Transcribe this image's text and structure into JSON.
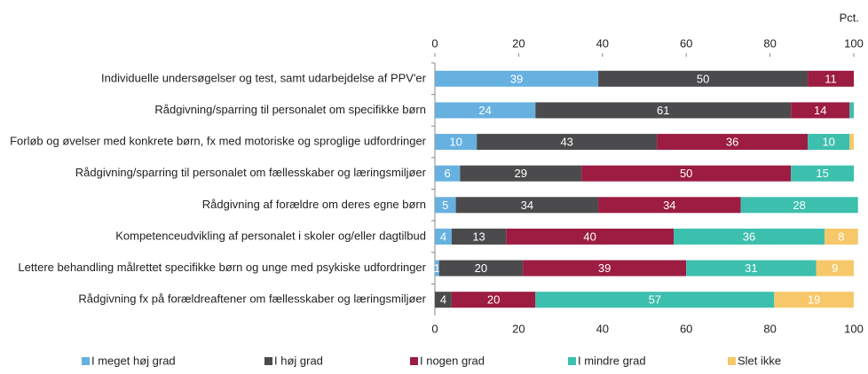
{
  "chart_data": {
    "type": "stacked-bar-horizontal",
    "unit_label": "Pct.",
    "categories": [
      "Individuelle undersøgelser og test, samt udarbejdelse af PPV'er",
      "Rådgivning/sparring til personalet om specifikke børn",
      "Forløb og øvelser med konkrete børn, fx med motoriske og sproglige udfordringer",
      "Rådgivning/sparring til personalet om fællesskaber og læringsmiljøer",
      "Rådgivning af forældre om deres egne børn",
      "Kompetenceudvikling af personalet i skoler og/eller dagtilbud",
      "Lettere behandling målrettet specifikke børn og unge med psykiske udfordringer",
      "Rådgivning fx på forældreaftener om fællesskaber og læringsmiljøer"
    ],
    "series": [
      {
        "name": "I meget høj grad",
        "color": "#67b1e0",
        "values": [
          39,
          24,
          10,
          6,
          5,
          4,
          1,
          0
        ],
        "value_labels": [
          39,
          24,
          10,
          6,
          5,
          4,
          1,
          null
        ]
      },
      {
        "name": "I høj grad",
        "color": "#4b4b4d",
        "values": [
          50,
          61,
          43,
          29,
          34,
          13,
          20,
          4
        ],
        "value_labels": [
          50,
          61,
          43,
          29,
          34,
          13,
          20,
          4
        ]
      },
      {
        "name": "I nogen grad",
        "color": "#9c1c42",
        "values": [
          11,
          14,
          36,
          50,
          34,
          40,
          39,
          20
        ],
        "value_labels": [
          11,
          14,
          36,
          50,
          34,
          40,
          39,
          20
        ]
      },
      {
        "name": "I mindre grad",
        "color": "#3dbfae",
        "values": [
          0,
          1,
          10,
          15,
          28,
          36,
          31,
          57
        ],
        "value_labels": [
          null,
          null,
          10,
          15,
          28,
          36,
          31,
          57
        ]
      },
      {
        "name": "Slet ikke",
        "color": "#f6c86a",
        "values": [
          0,
          0,
          1,
          0,
          0,
          8,
          9,
          19
        ],
        "value_labels": [
          null,
          null,
          null,
          null,
          null,
          8,
          9,
          19
        ]
      }
    ],
    "xlim": [
      0,
      100
    ],
    "xticks": [
      0,
      20,
      40,
      60,
      80,
      100
    ],
    "legend": "bottom"
  }
}
